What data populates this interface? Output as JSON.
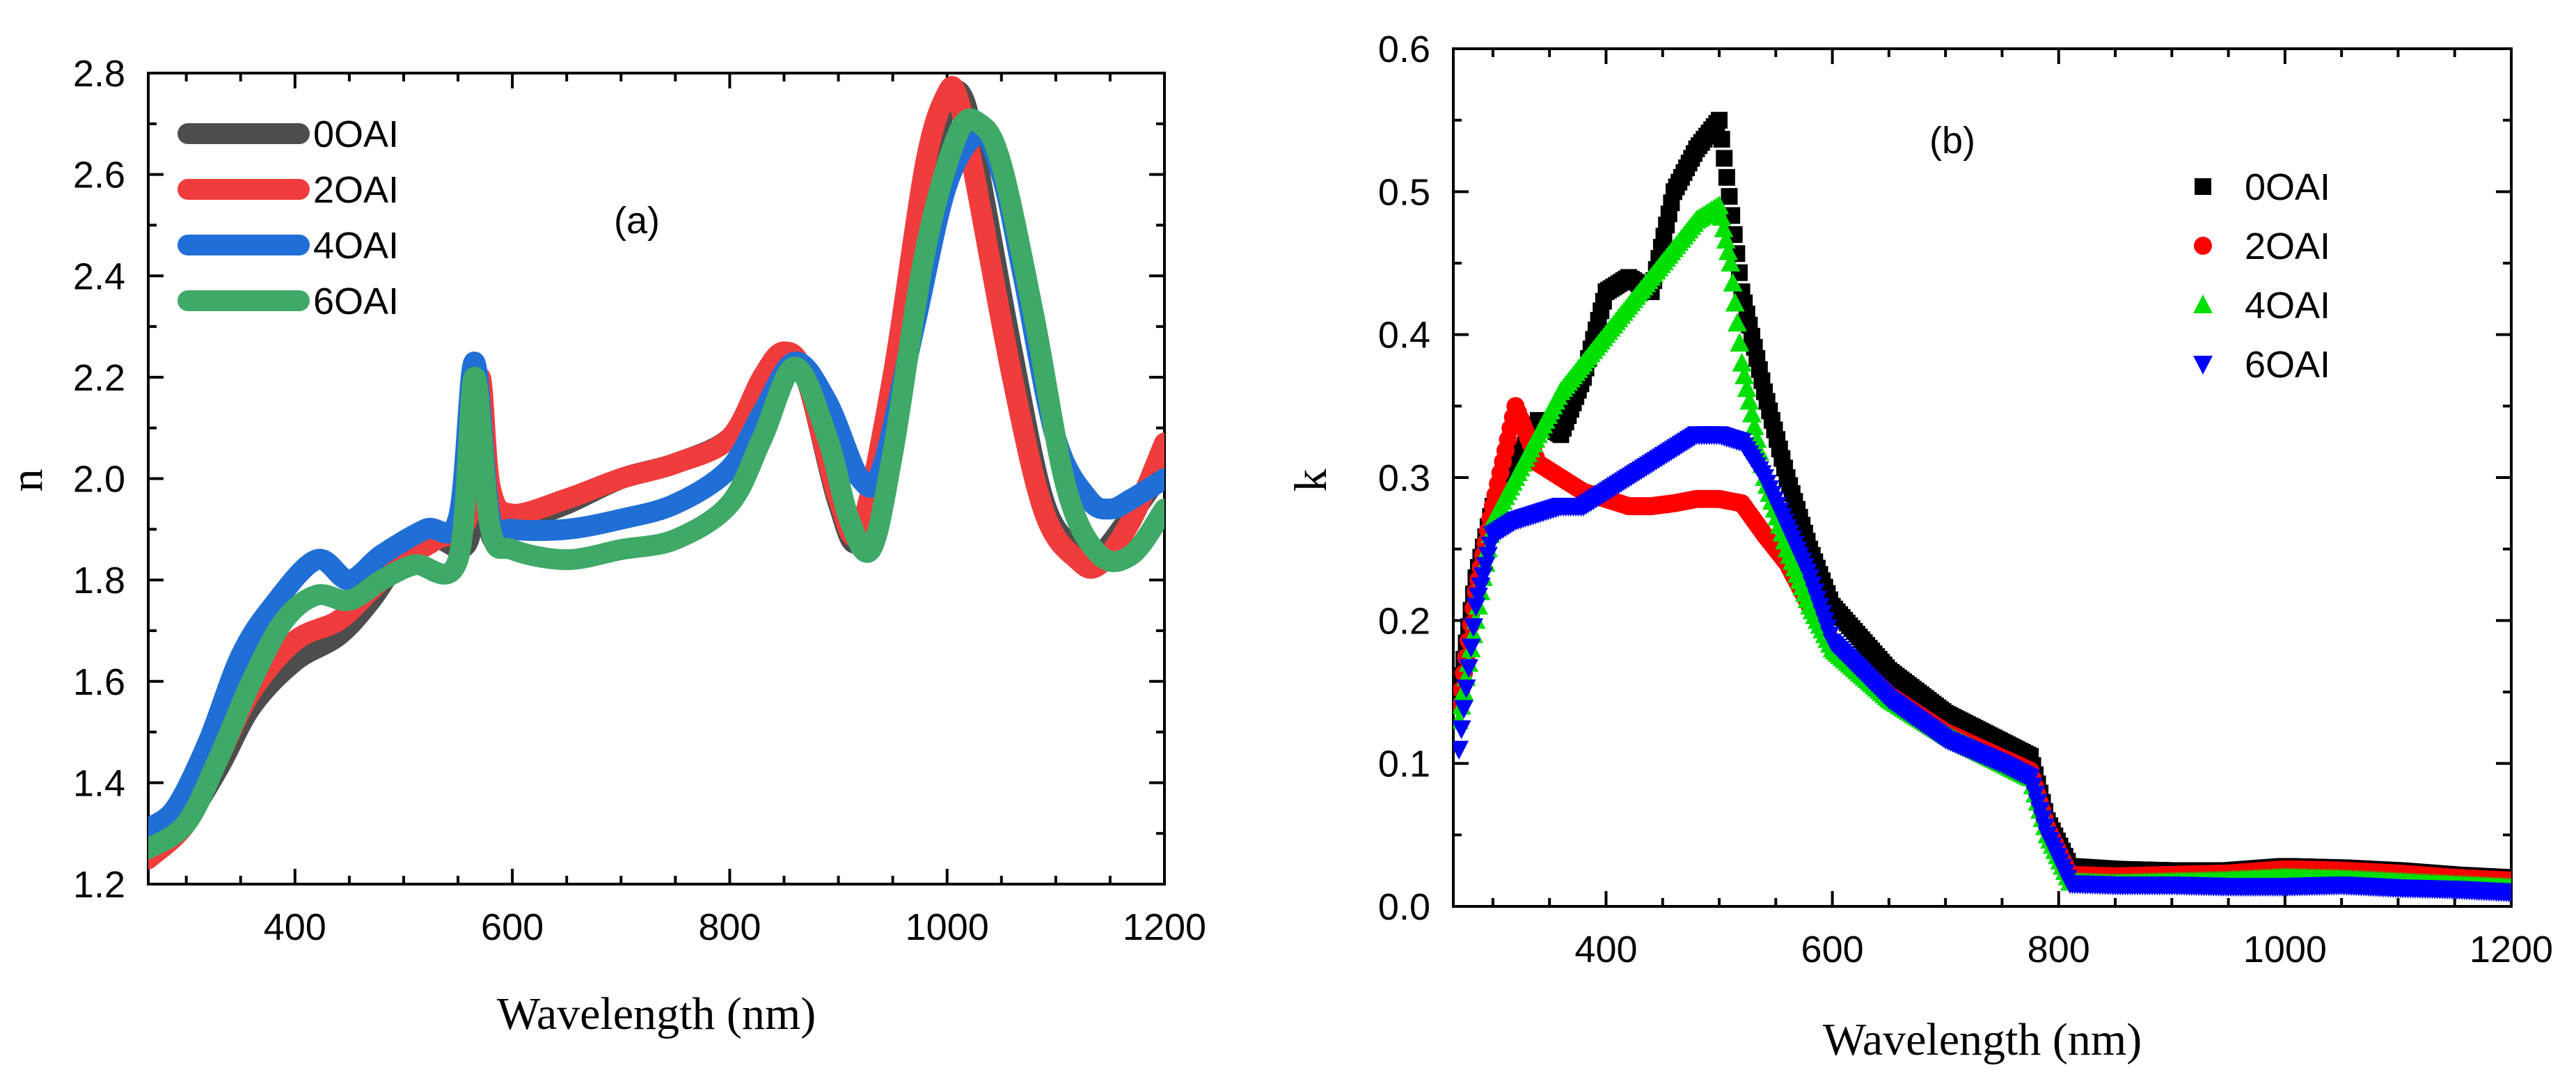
{
  "chart_data": [
    {
      "type": "line",
      "panel_label": "(a)",
      "xlabel": "Wavelength (nm)",
      "ylabel": "n",
      "xlim": [
        265,
        1200
      ],
      "ylim": [
        1.2,
        2.8
      ],
      "xticks": [
        400,
        600,
        800,
        1000,
        1200
      ],
      "yticks": [
        1.2,
        1.4,
        1.6,
        1.8,
        2.0,
        2.2,
        2.4,
        2.6,
        2.8
      ],
      "xtick_labels": [
        "400",
        "600",
        "800",
        "1000",
        "1200"
      ],
      "ytick_labels": [
        "1.2",
        "1.4",
        "1.6",
        "1.8",
        "2.0",
        "2.2",
        "2.4",
        "2.6",
        "2.8"
      ],
      "legend_position": "top-left",
      "series": [
        {
          "name": "0OAI",
          "color": "#4d4d4d",
          "x": [
            265,
            300,
            330,
            360,
            400,
            440,
            470,
            500,
            530,
            560,
            570,
            580,
            600,
            650,
            700,
            750,
            800,
            830,
            850,
            870,
            900,
            920,
            950,
            980,
            1000,
            1015,
            1030,
            1060,
            1090,
            1120,
            1140,
            1170,
            1200
          ],
          "y": [
            1.27,
            1.33,
            1.43,
            1.55,
            1.64,
            1.69,
            1.76,
            1.85,
            1.88,
            1.88,
            2.13,
            1.89,
            1.91,
            1.95,
            2.0,
            2.03,
            2.08,
            2.18,
            2.24,
            2.2,
            1.95,
            1.88,
            2.1,
            2.55,
            2.74,
            2.75,
            2.6,
            2.25,
            1.95,
            1.86,
            1.85,
            1.93,
            2.02
          ]
        },
        {
          "name": "2OAI",
          "color": "#f03c3c",
          "x": [
            265,
            300,
            330,
            360,
            400,
            440,
            470,
            500,
            530,
            560,
            570,
            580,
            600,
            650,
            700,
            750,
            800,
            830,
            850,
            870,
            900,
            920,
            950,
            980,
            1000,
            1010,
            1025,
            1060,
            1090,
            1120,
            1140,
            1170,
            1200
          ],
          "y": [
            1.25,
            1.32,
            1.45,
            1.58,
            1.68,
            1.72,
            1.78,
            1.84,
            1.88,
            1.93,
            2.2,
            1.98,
            1.93,
            1.96,
            2.0,
            2.03,
            2.08,
            2.2,
            2.25,
            2.2,
            1.96,
            1.9,
            2.2,
            2.62,
            2.76,
            2.75,
            2.6,
            2.2,
            1.93,
            1.84,
            1.83,
            1.92,
            2.07
          ]
        },
        {
          "name": "4OAI",
          "color": "#1f6fd6",
          "x": [
            265,
            290,
            320,
            350,
            380,
            420,
            450,
            480,
            520,
            550,
            565,
            580,
            600,
            650,
            700,
            750,
            800,
            830,
            860,
            890,
            920,
            940,
            970,
            1000,
            1030,
            1050,
            1070,
            1100,
            1130,
            1150,
            1170,
            1200
          ],
          "y": [
            1.31,
            1.35,
            1.48,
            1.65,
            1.75,
            1.84,
            1.8,
            1.85,
            1.9,
            1.92,
            2.23,
            1.92,
            1.9,
            1.9,
            1.92,
            1.95,
            2.02,
            2.13,
            2.23,
            2.15,
            2.0,
            2.02,
            2.3,
            2.58,
            2.68,
            2.6,
            2.4,
            2.08,
            1.96,
            1.94,
            1.96,
            2.0
          ]
        },
        {
          "name": "6OAI",
          "color": "#3fa968",
          "x": [
            265,
            300,
            330,
            360,
            390,
            420,
            450,
            480,
            510,
            550,
            565,
            580,
            600,
            650,
            700,
            750,
            800,
            830,
            860,
            890,
            910,
            930,
            950,
            980,
            1010,
            1030,
            1050,
            1080,
            1110,
            1140,
            1170,
            1200
          ],
          "y": [
            1.27,
            1.32,
            1.45,
            1.6,
            1.72,
            1.77,
            1.76,
            1.8,
            1.83,
            1.84,
            2.2,
            1.9,
            1.86,
            1.84,
            1.86,
            1.88,
            1.95,
            2.08,
            2.22,
            2.08,
            1.92,
            1.86,
            2.05,
            2.45,
            2.68,
            2.7,
            2.62,
            2.32,
            1.98,
            1.85,
            1.85,
            1.94
          ]
        }
      ]
    },
    {
      "type": "scatter",
      "panel_label": "(b)",
      "xlabel": "Wavelength (nm)",
      "ylabel": "k",
      "xlim": [
        265,
        1200
      ],
      "ylim": [
        0,
        0.6
      ],
      "xticks": [
        400,
        600,
        800,
        1000,
        1200
      ],
      "yticks": [
        0,
        0.1,
        0.2,
        0.3,
        0.4,
        0.5,
        0.6
      ],
      "xtick_labels": [
        "400",
        "600",
        "800",
        "1000",
        "1200"
      ],
      "ytick_labels": [
        "0.0",
        "0.1",
        "0.2",
        "0.3",
        "0.4",
        "0.5",
        "0.6"
      ],
      "legend_position": "top-right",
      "series": [
        {
          "name": "0OAI",
          "marker": "square",
          "color": "#000000",
          "x": [
            270,
            285,
            300,
            320,
            340,
            360,
            380,
            400,
            420,
            440,
            460,
            480,
            500,
            520,
            540,
            560,
            580,
            600,
            650,
            700,
            750,
            775,
            790,
            810,
            850,
            900,
            950,
            1000,
            1050,
            1100,
            1150,
            1200
          ],
          "y": [
            0.15,
            0.23,
            0.28,
            0.31,
            0.34,
            0.33,
            0.37,
            0.43,
            0.44,
            0.43,
            0.5,
            0.53,
            0.55,
            0.43,
            0.36,
            0.3,
            0.25,
            0.21,
            0.165,
            0.135,
            0.115,
            0.105,
            0.06,
            0.028,
            0.026,
            0.025,
            0.025,
            0.028,
            0.027,
            0.025,
            0.022,
            0.02
          ]
        },
        {
          "name": "2OAI",
          "marker": "circle",
          "color": "#ff0000",
          "x": [
            270,
            285,
            300,
            320,
            340,
            360,
            380,
            400,
            420,
            440,
            460,
            480,
            500,
            520,
            540,
            560,
            580,
            600,
            650,
            700,
            750,
            775,
            790,
            810,
            850,
            900,
            950,
            1000,
            1050,
            1100,
            1150,
            1200
          ],
          "y": [
            0.14,
            0.22,
            0.28,
            0.35,
            0.31,
            0.3,
            0.29,
            0.285,
            0.28,
            0.28,
            0.282,
            0.285,
            0.285,
            0.282,
            0.26,
            0.24,
            0.21,
            0.185,
            0.148,
            0.122,
            0.104,
            0.095,
            0.055,
            0.022,
            0.021,
            0.022,
            0.023,
            0.026,
            0.025,
            0.023,
            0.02,
            0.018
          ]
        },
        {
          "name": "4OAI",
          "marker": "triangle-up",
          "color": "#00e000",
          "x": [
            270,
            285,
            300,
            320,
            340,
            360,
            380,
            400,
            420,
            440,
            460,
            480,
            500,
            510,
            520,
            540,
            560,
            580,
            600,
            650,
            700,
            750,
            775,
            790,
            810,
            850,
            900,
            950,
            1000,
            1050,
            1100,
            1150,
            1200
          ],
          "y": [
            0.13,
            0.2,
            0.27,
            0.3,
            0.33,
            0.36,
            0.38,
            0.4,
            0.42,
            0.44,
            0.46,
            0.48,
            0.49,
            0.45,
            0.38,
            0.3,
            0.25,
            0.21,
            0.18,
            0.145,
            0.12,
            0.1,
            0.09,
            0.05,
            0.017,
            0.016,
            0.017,
            0.018,
            0.02,
            0.019,
            0.017,
            0.015,
            0.013
          ]
        },
        {
          "name": "6OAI",
          "marker": "triangle-down",
          "color": "#0000ff",
          "x": [
            270,
            285,
            300,
            320,
            340,
            360,
            380,
            400,
            420,
            440,
            460,
            480,
            500,
            520,
            540,
            560,
            580,
            600,
            650,
            700,
            750,
            775,
            790,
            810,
            850,
            900,
            950,
            1000,
            1050,
            1100,
            1150,
            1200
          ],
          "y": [
            0.11,
            0.21,
            0.26,
            0.27,
            0.275,
            0.28,
            0.28,
            0.29,
            0.3,
            0.31,
            0.32,
            0.33,
            0.33,
            0.325,
            0.3,
            0.265,
            0.23,
            0.185,
            0.145,
            0.117,
            0.1,
            0.09,
            0.05,
            0.016,
            0.015,
            0.015,
            0.014,
            0.014,
            0.015,
            0.013,
            0.012,
            0.01
          ]
        }
      ]
    }
  ]
}
